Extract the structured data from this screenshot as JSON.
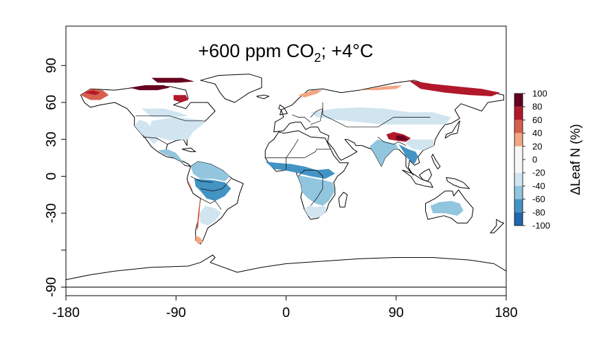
{
  "map": {
    "title_main": "+600 ppm CO",
    "title_sub": "2",
    "title_tail": "; +4°C",
    "x_ticks": [
      "-180",
      "-90",
      "0",
      "90",
      "180"
    ],
    "y_ticks": [
      "-90",
      "-30",
      "0",
      "30",
      "60",
      "90"
    ],
    "x_range": [
      -180,
      180
    ],
    "y_range": [
      -97,
      122
    ],
    "projection": "equirectangular"
  },
  "colorbar": {
    "title": "ΔLeaf N (%)",
    "labels": [
      "100",
      "80",
      "60",
      "40",
      "20",
      "0",
      "-20",
      "-40",
      "-60",
      "-80",
      "-100"
    ],
    "colors": [
      "#67001f",
      "#b2182b",
      "#d6604d",
      "#f4a582",
      "#fddbc7",
      "#f7f7f7",
      "#d1e5f0",
      "#92c5de",
      "#4393c3",
      "#2166ac",
      "#053061"
    ],
    "bin_colors_top_to_bottom": [
      "#67001f",
      "#b2182b",
      "#d6604d",
      "#f4a582",
      "#f7f7f7",
      "#f7f7f7",
      "#d1e5f0",
      "#92c5de",
      "#4393c3",
      "#2166ac",
      "#053061"
    ]
  }
}
